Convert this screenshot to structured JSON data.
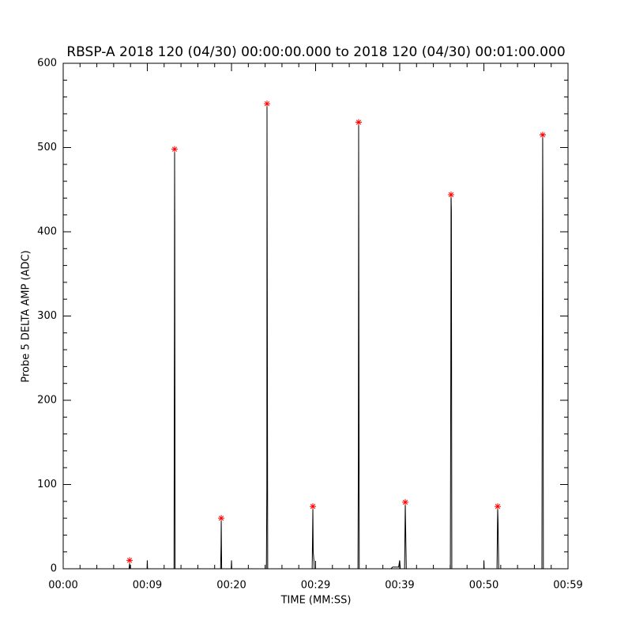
{
  "chart_data": {
    "type": "line",
    "title": "RBSP-A 2018 120 (04/30) 00:00:00.000 to 2018 120 (04/30) 00:01:00.000",
    "x_label": "TIME (MM:SS)",
    "y_label": "Probe 5 DELTA AMP (ADC)",
    "xlim": [
      0,
      59
    ],
    "ylim": [
      0,
      600
    ],
    "xticks": [
      {
        "value": 0,
        "label": "00:00"
      },
      {
        "value": 9.83,
        "label": "00:09"
      },
      {
        "value": 19.67,
        "label": "00:20"
      },
      {
        "value": 29.5,
        "label": "00:29"
      },
      {
        "value": 39.33,
        "label": "00:39"
      },
      {
        "value": 49.17,
        "label": "00:50"
      },
      {
        "value": 59,
        "label": "00:59"
      }
    ],
    "yticks": [
      0,
      100,
      200,
      300,
      400,
      500,
      600
    ],
    "series": [
      {
        "color": "#000000",
        "x": [
          0,
          7.7,
          7.76,
          7.82,
          9.8,
          9.83,
          9.86,
          12.95,
          13.0,
          13.02,
          13.04,
          13.08,
          18.4,
          18.45,
          18.47,
          18.52,
          19.64,
          19.67,
          19.7,
          23.75,
          23.8,
          23.82,
          23.85,
          23.9,
          29.1,
          29.18,
          29.22,
          29.3,
          29.35,
          34.45,
          34.5,
          34.53,
          34.56,
          34.6,
          38.3,
          38.5,
          39.2,
          39.33,
          39.4,
          39.9,
          39.98,
          40.02,
          40.1,
          45.25,
          45.3,
          45.33,
          45.37,
          45.42,
          49.15,
          49.17,
          49.2,
          50.7,
          50.78,
          50.82,
          50.9,
          55.95,
          56.0,
          56.04,
          56.07,
          56.12,
          59
        ],
        "values": [
          0,
          0,
          6,
          0,
          0,
          10,
          0,
          0,
          280,
          498,
          410,
          0,
          0,
          28,
          58,
          0,
          0,
          10,
          0,
          0,
          95,
          552,
          350,
          0,
          0,
          72,
          20,
          10,
          0,
          0,
          135,
          530,
          308,
          0,
          0,
          2,
          2,
          10,
          0,
          0,
          78,
          50,
          0,
          0,
          233,
          444,
          425,
          0,
          0,
          10,
          0,
          0,
          72,
          57,
          0,
          0,
          293,
          515,
          414,
          0,
          0
        ]
      },
      {
        "color": "#ff0000",
        "marker": "asterisk",
        "x": [
          7.76,
          13.02,
          18.47,
          23.82,
          29.18,
          34.53,
          39.98,
          45.33,
          50.78,
          56.04
        ],
        "values": [
          10,
          498,
          60,
          552,
          74,
          530,
          79,
          444,
          74,
          515
        ]
      }
    ]
  }
}
